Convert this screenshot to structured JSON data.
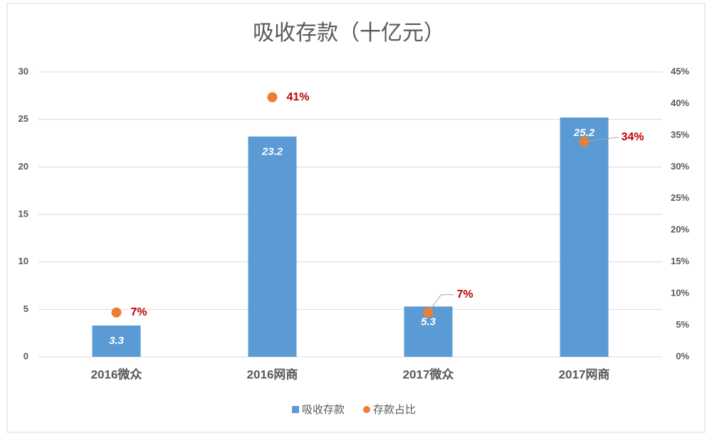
{
  "chart_data": {
    "type": "bar_scatter",
    "title": "吸收存款（十亿元）",
    "categories": [
      "2016微众",
      "2016网商",
      "2017微众",
      "2017网商"
    ],
    "series": [
      {
        "name": "吸收存款",
        "type": "bar",
        "color": "#5b9bd5",
        "values": [
          3.3,
          23.2,
          5.3,
          25.2
        ]
      },
      {
        "name": "存款占比",
        "type": "scatter",
        "axis": "y2",
        "color": "#ed7d31",
        "values": [
          7,
          41,
          7,
          34
        ],
        "value_labels": [
          "7%",
          "41%",
          "7%",
          "34%"
        ]
      }
    ],
    "ylim": [
      0,
      30
    ],
    "yticks": [
      0,
      5,
      10,
      15,
      20,
      25,
      30
    ],
    "y2lim": [
      0,
      45
    ],
    "y2ticks": [
      {
        "value": 0,
        "label": "0%"
      },
      {
        "value": 5,
        "label": "5%"
      },
      {
        "value": 10,
        "label": "10%"
      },
      {
        "value": 15,
        "label": "15%"
      },
      {
        "value": 20,
        "label": "20%"
      },
      {
        "value": 25,
        "label": "25%"
      },
      {
        "value": 30,
        "label": "30%"
      },
      {
        "value": 35,
        "label": "35%"
      },
      {
        "value": 40,
        "label": "40%"
      },
      {
        "value": 45,
        "label": "45%"
      }
    ],
    "grid": true,
    "legend": "bottom"
  }
}
